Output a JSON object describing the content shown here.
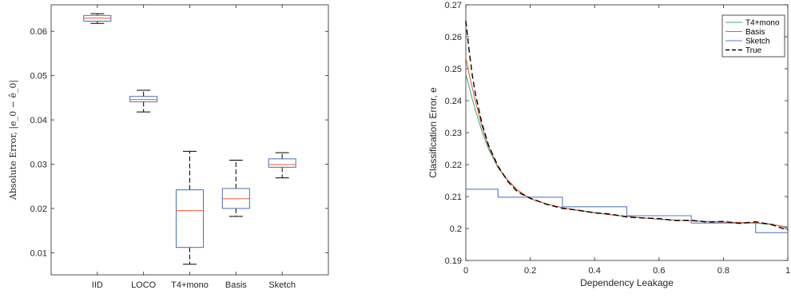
{
  "chart_data": [
    {
      "type": "box",
      "title": "",
      "xlabel": "",
      "ylabel": "Absolute Error, |e_0 − ê_0|",
      "ylim": [
        0.005,
        0.066
      ],
      "yticks": [
        0.01,
        0.02,
        0.03,
        0.04,
        0.05,
        0.06
      ],
      "ytick_labels": [
        "0.01",
        "0.02",
        "0.03",
        "0.04",
        "0.05",
        "0.06"
      ],
      "categories": [
        "IID",
        "LOCO",
        "T4+mono",
        "Basis",
        "Sketch"
      ],
      "boxes": [
        {
          "whisker_low": 0.0618,
          "q1": 0.0623,
          "median": 0.063,
          "q3": 0.0636,
          "whisker_high": 0.064
        },
        {
          "whisker_low": 0.0418,
          "q1": 0.0441,
          "median": 0.0446,
          "q3": 0.0453,
          "whisker_high": 0.0467
        },
        {
          "whisker_low": 0.0074,
          "q1": 0.0112,
          "median": 0.0195,
          "q3": 0.0242,
          "whisker_high": 0.0329
        },
        {
          "whisker_low": 0.0182,
          "q1": 0.02,
          "median": 0.0222,
          "q3": 0.0245,
          "whisker_high": 0.0309
        },
        {
          "whisker_low": 0.0269,
          "q1": 0.0293,
          "median": 0.0299,
          "q3": 0.0312,
          "whisker_high": 0.0326
        }
      ],
      "colors": {
        "box": "#4a6fb5",
        "median": "#e8603c",
        "whisker": "#000000"
      }
    },
    {
      "type": "line",
      "title": "",
      "xlabel": "Dependency Leakage",
      "ylabel": "Classification Error, e",
      "xlim": [
        0,
        1
      ],
      "ylim": [
        0.19,
        0.27
      ],
      "xticks": [
        0,
        0.2,
        0.4,
        0.6,
        0.8,
        1
      ],
      "xtick_labels": [
        "0",
        "0.2",
        "0.4",
        "0.6",
        "0.8",
        "1"
      ],
      "yticks": [
        0.19,
        0.2,
        0.21,
        0.22,
        0.23,
        0.24,
        0.25,
        0.26,
        0.27
      ],
      "ytick_labels": [
        "0.19",
        "0.2",
        "0.21",
        "0.22",
        "0.23",
        "0.24",
        "0.25",
        "0.26",
        "0.27"
      ],
      "legend_position": "top-right",
      "x": [
        0,
        0.01,
        0.02,
        0.03,
        0.05,
        0.07,
        0.1,
        0.13,
        0.16,
        0.2,
        0.25,
        0.3,
        0.35,
        0.4,
        0.45,
        0.5,
        0.55,
        0.6,
        0.65,
        0.7,
        0.75,
        0.8,
        0.85,
        0.9,
        0.95,
        1
      ],
      "series": [
        {
          "name": "T4+mono",
          "color": "#3fae8a",
          "dash": "",
          "values": [
            0.2485,
            0.2445,
            0.2405,
            0.237,
            0.2305,
            0.225,
            0.219,
            0.215,
            0.212,
            0.2093,
            0.2077,
            0.2065,
            0.2057,
            0.205,
            0.2043,
            0.2038,
            0.2033,
            0.2029,
            0.2026,
            0.2024,
            0.2022,
            0.202,
            0.2018,
            0.2017,
            0.2012,
            0.2005
          ]
        },
        {
          "name": "Basis",
          "color": "#e8603c",
          "dash": "",
          "values": [
            0.2535,
            0.2485,
            0.244,
            0.2398,
            0.232,
            0.2258,
            0.2192,
            0.2152,
            0.2121,
            0.2093,
            0.2077,
            0.2065,
            0.2056,
            0.2049,
            0.2043,
            0.2038,
            0.2033,
            0.2029,
            0.2026,
            0.2024,
            0.2022,
            0.202,
            0.2019,
            0.2018,
            0.2014,
            0.2002
          ]
        },
        {
          "name": "True",
          "color": "#000000",
          "dash": "7,4",
          "values": [
            0.265,
            0.256,
            0.248,
            0.242,
            0.233,
            0.2262,
            0.2195,
            0.2148,
            0.2115,
            0.2095,
            0.2076,
            0.2063,
            0.2057,
            0.2049,
            0.2045,
            0.2036,
            0.2033,
            0.2031,
            0.2025,
            0.2026,
            0.202,
            0.2022,
            0.2016,
            0.2021,
            0.2012,
            0.1995
          ]
        }
      ],
      "step_series": [
        {
          "name": "Sketch",
          "color": "#5a7bc4",
          "x": [
            0,
            0.1,
            0.1,
            0.3,
            0.3,
            0.5,
            0.5,
            0.7,
            0.7,
            0.9,
            0.9,
            1
          ],
          "values": [
            0.2123,
            0.2123,
            0.2098,
            0.2098,
            0.2068,
            0.2068,
            0.204,
            0.204,
            0.2017,
            0.2017,
            0.1987,
            0.1987
          ]
        }
      ]
    }
  ]
}
